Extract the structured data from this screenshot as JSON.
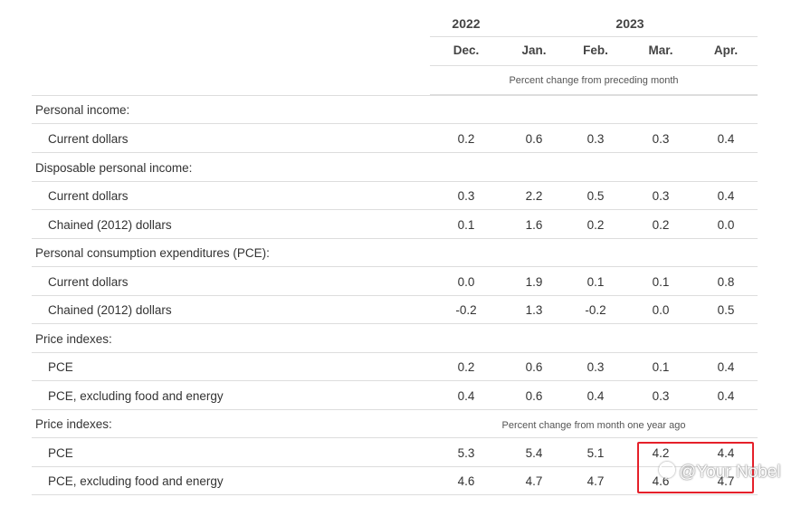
{
  "header": {
    "years": [
      "2022",
      "2023"
    ],
    "months": [
      "Dec.",
      "Jan.",
      "Feb.",
      "Mar.",
      "Apr."
    ],
    "note_monthly": "Percent change from preceding month",
    "note_yearly": "Percent change from month one year ago"
  },
  "rows": [
    {
      "label": "Personal income:",
      "values": []
    },
    {
      "label": "Current dollars",
      "values": [
        "0.2",
        "0.6",
        "0.3",
        "0.3",
        "0.4"
      ]
    },
    {
      "label": "Disposable personal income:",
      "values": []
    },
    {
      "label": "Current dollars",
      "values": [
        "0.3",
        "2.2",
        "0.5",
        "0.3",
        "0.4"
      ]
    },
    {
      "label": "Chained (2012) dollars",
      "values": [
        "0.1",
        "1.6",
        "0.2",
        "0.2",
        "0.0"
      ]
    },
    {
      "label": "Personal consumption expenditures (PCE):",
      "values": []
    },
    {
      "label": "Current dollars",
      "values": [
        "0.0",
        "1.9",
        "0.1",
        "0.1",
        "0.8"
      ]
    },
    {
      "label": "Chained (2012) dollars",
      "values": [
        "-0.2",
        "1.3",
        "-0.2",
        "0.0",
        "0.5"
      ]
    },
    {
      "label": "Price indexes:",
      "values": []
    },
    {
      "label": "PCE",
      "values": [
        "0.2",
        "0.6",
        "0.3",
        "0.1",
        "0.4"
      ]
    },
    {
      "label": "PCE, excluding food and energy",
      "values": [
        "0.4",
        "0.6",
        "0.4",
        "0.3",
        "0.4"
      ]
    },
    {
      "label": "Price indexes:",
      "values": []
    },
    {
      "label": "PCE",
      "values": [
        "5.3",
        "5.4",
        "5.1",
        "4.2",
        "4.4"
      ]
    },
    {
      "label": "PCE, excluding food and energy",
      "values": [
        "4.6",
        "4.7",
        "4.7",
        "4.6",
        "4.7"
      ]
    }
  ],
  "watermark": "@Your Nobel",
  "colors": {
    "highlight": "#e5202a",
    "rule": "#dddddd"
  }
}
